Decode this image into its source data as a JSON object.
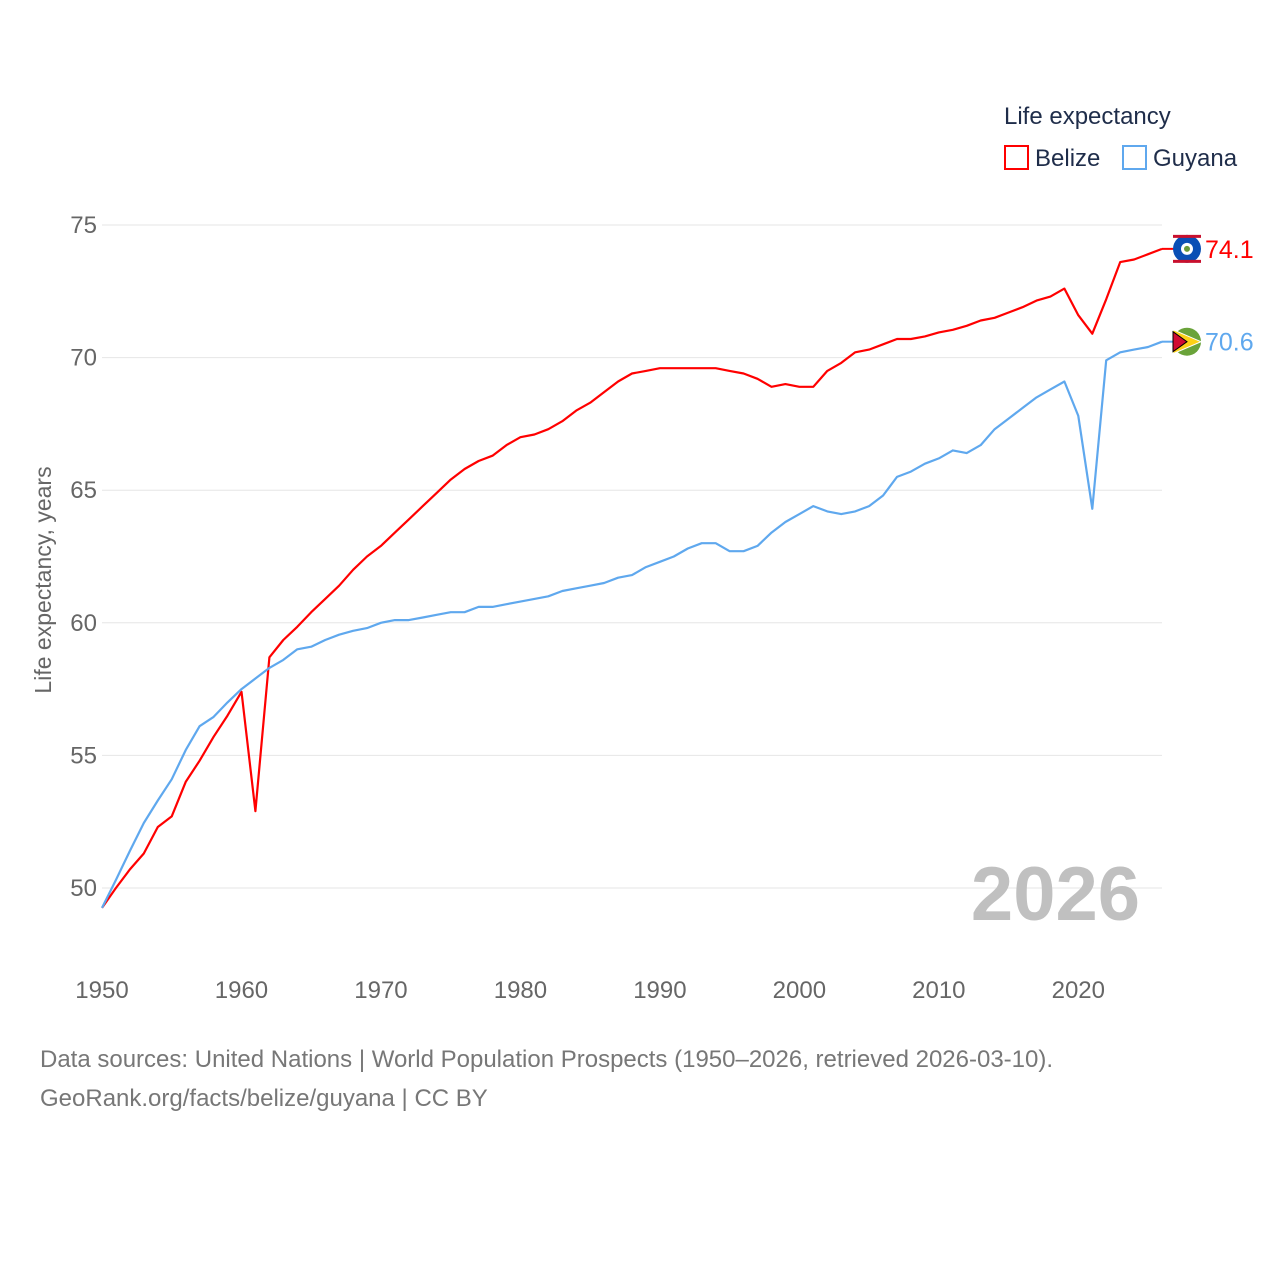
{
  "chart_data": {
    "type": "line",
    "title": "",
    "legend_title": "Life expectancy",
    "legend_position": "top-right",
    "xlabel": "",
    "ylabel": "Life expectancy, years",
    "xlim": [
      1950,
      2026
    ],
    "ylim": [
      48.5,
      76
    ],
    "xticks": [
      1950,
      1960,
      1970,
      1980,
      1990,
      2000,
      2010,
      2020
    ],
    "yticks": [
      50,
      55,
      60,
      65,
      70,
      75
    ],
    "grid": true,
    "year_watermark": "2026",
    "x": [
      1950,
      1951,
      1952,
      1953,
      1954,
      1955,
      1956,
      1957,
      1958,
      1959,
      1960,
      1961,
      1962,
      1963,
      1964,
      1965,
      1966,
      1967,
      1968,
      1969,
      1970,
      1971,
      1972,
      1973,
      1974,
      1975,
      1976,
      1977,
      1978,
      1979,
      1980,
      1981,
      1982,
      1983,
      1984,
      1985,
      1986,
      1987,
      1988,
      1989,
      1990,
      1991,
      1992,
      1993,
      1994,
      1995,
      1996,
      1997,
      1998,
      1999,
      2000,
      2001,
      2002,
      2003,
      2004,
      2005,
      2006,
      2007,
      2008,
      2009,
      2010,
      2011,
      2012,
      2013,
      2014,
      2015,
      2016,
      2017,
      2018,
      2019,
      2020,
      2021,
      2022,
      2023,
      2024,
      2025,
      2026
    ],
    "series": [
      {
        "name": "Belize",
        "color": "#ff0000",
        "end_label": "74.1",
        "values": [
          49.25,
          50.0,
          50.7,
          51.3,
          52.3,
          52.7,
          54.0,
          54.8,
          55.7,
          56.5,
          57.4,
          52.9,
          58.7,
          59.35,
          59.85,
          60.4,
          60.9,
          61.4,
          62.0,
          62.5,
          62.9,
          63.4,
          63.9,
          64.4,
          64.9,
          65.4,
          65.8,
          66.1,
          66.3,
          66.7,
          67.0,
          67.1,
          67.3,
          67.6,
          68.0,
          68.3,
          68.7,
          69.1,
          69.4,
          69.5,
          69.6,
          69.6,
          69.6,
          69.6,
          69.6,
          69.5,
          69.4,
          69.2,
          68.9,
          69.0,
          68.9,
          68.9,
          69.5,
          69.8,
          70.2,
          70.3,
          70.5,
          70.7,
          70.7,
          70.8,
          70.95,
          71.05,
          71.2,
          71.4,
          71.5,
          71.7,
          71.9,
          72.15,
          72.3,
          72.6,
          71.6,
          70.9,
          72.2,
          73.6,
          73.7,
          73.9,
          74.1
        ]
      },
      {
        "name": "Guyana",
        "color": "#5fa8ee",
        "end_label": "70.6",
        "values": [
          49.25,
          50.3,
          51.4,
          52.45,
          53.3,
          54.1,
          55.2,
          56.1,
          56.45,
          57.0,
          57.5,
          57.9,
          58.3,
          58.6,
          59.0,
          59.1,
          59.35,
          59.55,
          59.7,
          59.8,
          60.0,
          60.1,
          60.1,
          60.2,
          60.3,
          60.4,
          60.4,
          60.6,
          60.6,
          60.7,
          60.8,
          60.9,
          61.0,
          61.2,
          61.3,
          61.4,
          61.5,
          61.7,
          61.8,
          62.1,
          62.3,
          62.5,
          62.8,
          63.0,
          63.0,
          62.7,
          62.7,
          62.9,
          63.4,
          63.8,
          64.1,
          64.4,
          64.2,
          64.1,
          64.2,
          64.4,
          64.8,
          65.5,
          65.7,
          66.0,
          66.2,
          66.5,
          66.4,
          66.7,
          67.3,
          67.7,
          68.1,
          68.5,
          68.8,
          69.1,
          67.8,
          64.3,
          69.9,
          70.2,
          70.3,
          70.4,
          70.6
        ]
      }
    ]
  },
  "footer": {
    "sources": "Data sources: United Nations | World Population Prospects (1950–2026, retrieved 2026-03-10).",
    "attribution": "GeoRank.org/facts/belize/guyana | CC BY"
  }
}
